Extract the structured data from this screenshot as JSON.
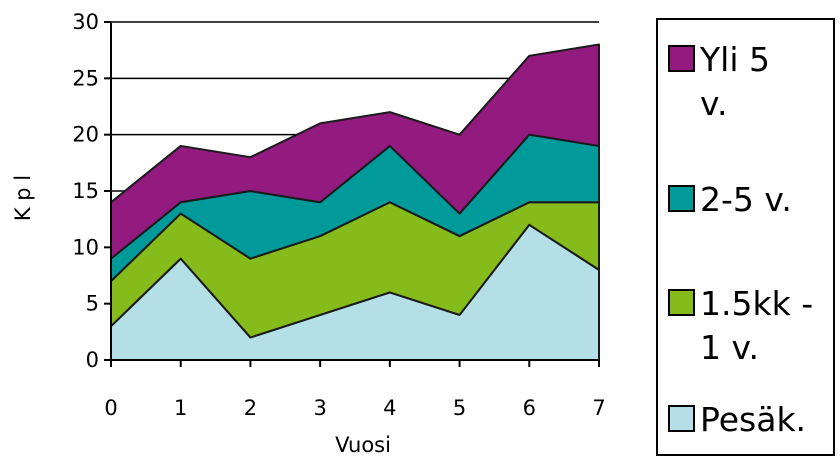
{
  "chart_data": {
    "type": "area",
    "stacked": true,
    "x": [
      0,
      1,
      2,
      3,
      4,
      5,
      6,
      7
    ],
    "xlabel": "Vuosi",
    "ylabel": "K p l",
    "ylim": [
      0,
      30
    ],
    "yticks": [
      0,
      5,
      10,
      15,
      20,
      25,
      30
    ],
    "grid": "horizontal",
    "legend_position": "right",
    "series": [
      {
        "name": "Pesäk.",
        "color": "#b4dfe6",
        "values": [
          3,
          9,
          2,
          4,
          6,
          4,
          12,
          8
        ]
      },
      {
        "name": "1.5kk - 1 v.",
        "color": "#85bb1b",
        "values": [
          4,
          4,
          7,
          7,
          8,
          7,
          2,
          6
        ]
      },
      {
        "name": "2-5 v.",
        "color": "#009a9a",
        "values": [
          2,
          1,
          6,
          3,
          5,
          2,
          6,
          5
        ]
      },
      {
        "name": "Yli 5 v.",
        "color": "#931a7f",
        "values": [
          5,
          5,
          3,
          7,
          3,
          7,
          7,
          9
        ]
      }
    ]
  },
  "legend": {
    "items": [
      {
        "label": "Yli 5\nv.",
        "color": "#931a7f"
      },
      {
        "label": "2-5 v.",
        "color": "#009a9a"
      },
      {
        "label": "1.5kk -\n1 v.",
        "color": "#85bb1b"
      },
      {
        "label": "Pesäk.",
        "color": "#b4dfe6"
      }
    ]
  }
}
